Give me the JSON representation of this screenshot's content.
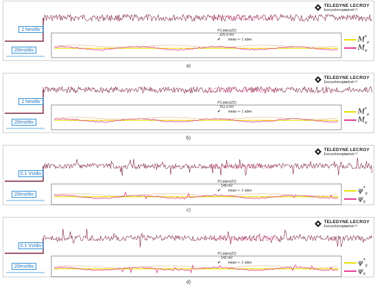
{
  "brand": {
    "name": "TELEDYNE LECROY",
    "tagline_a": "Everywhere",
    "tagline_b": "you",
    "tagline_c": "look",
    "tm": "™"
  },
  "colors": {
    "trace": "#7a1d3a",
    "ref_line": "#e7e000",
    "meas_line": "#e23891",
    "accent": "#2e8fd8",
    "dim": "#c48c4a"
  },
  "stat_label": "mean +- 1 sdev",
  "panels": [
    {
      "caption": "a)",
      "vdiv": "2 Nm/div",
      "tdiv": "20ms/div",
      "meas_title": "P1:sdev(Z2)",
      "meas_value": "325.9 mV",
      "legend": [
        {
          "base": "M",
          "sup": "*",
          "sub": "e"
        },
        {
          "base": "M",
          "sup": "",
          "sub": "e"
        }
      ]
    },
    {
      "caption": "b)",
      "vdiv": "2 Nm/div",
      "tdiv": "20ms/div",
      "meas_title": "P1:sdev(Z2)",
      "meas_value": "311.3 mV",
      "legend": [
        {
          "base": "M",
          "sup": "*",
          "sub": "e"
        },
        {
          "base": "M",
          "sup": "",
          "sub": "e"
        }
      ]
    },
    {
      "caption": "c)",
      "vdiv": "0.1 Vs/div",
      "tdiv": "20ms/div",
      "meas_title": "P1:sdev(Z2)",
      "meas_value": "148 mV",
      "legend": [
        {
          "base": "ψ",
          "sup": "*",
          "sub": "s"
        },
        {
          "base": "ψ",
          "sup": "",
          "sub": "s"
        }
      ]
    },
    {
      "caption": "d)",
      "vdiv": "0.1 Vs/div",
      "tdiv": "20ms/div",
      "meas_title": "P1:sdev(Z2)",
      "meas_value": "142 mV",
      "legend": [
        {
          "base": "ψ",
          "sup": "*",
          "sub": "s"
        },
        {
          "base": "ψ",
          "sup": "",
          "sub": "s"
        }
      ]
    }
  ],
  "chart_data": [
    {
      "type": "line",
      "title": "",
      "caption": "a)",
      "vertical_scale": "2 Nm/div",
      "time_scale": "20ms/div",
      "series": [
        {
          "name": "M_e*"
        },
        {
          "name": "M_e"
        }
      ],
      "measurement": {
        "label": "P1:sdev(Z2)",
        "value": 325.9,
        "unit": "mV"
      }
    },
    {
      "type": "line",
      "title": "",
      "caption": "b)",
      "vertical_scale": "2 Nm/div",
      "time_scale": "20ms/div",
      "series": [
        {
          "name": "M_e*"
        },
        {
          "name": "M_e"
        }
      ],
      "measurement": {
        "label": "P1:sdev(Z2)",
        "value": 311.3,
        "unit": "mV"
      }
    },
    {
      "type": "line",
      "title": "",
      "caption": "c)",
      "vertical_scale": "0.1 Vs/div",
      "time_scale": "20ms/div",
      "series": [
        {
          "name": "ψ_s*"
        },
        {
          "name": "ψ_s"
        }
      ],
      "measurement": {
        "label": "P1:sdev(Z2)",
        "value": 148,
        "unit": "mV"
      }
    },
    {
      "type": "line",
      "title": "",
      "caption": "d)",
      "vertical_scale": "0.1 Vs/div",
      "time_scale": "20ms/div",
      "series": [
        {
          "name": "ψ_s*"
        },
        {
          "name": "ψ_s"
        }
      ],
      "measurement": {
        "label": "P1:sdev(Z2)",
        "value": 142,
        "unit": "mV"
      }
    }
  ]
}
